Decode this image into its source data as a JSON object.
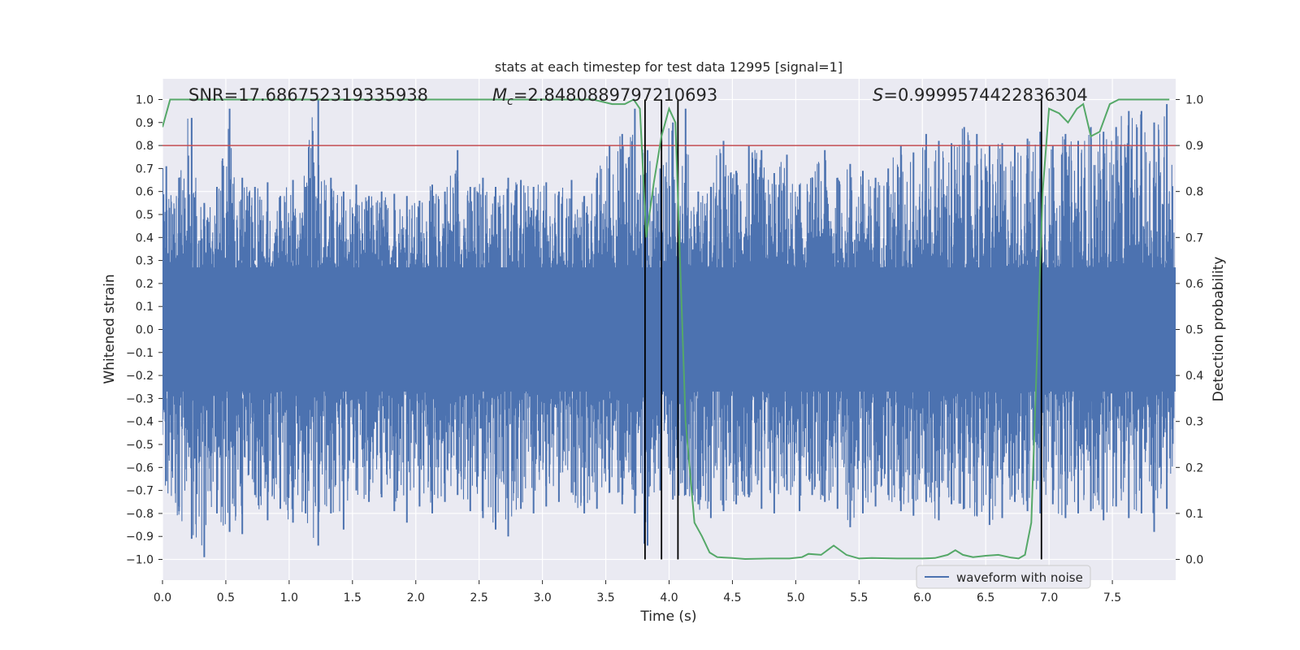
{
  "chart_data": {
    "type": "line",
    "title": "stats at each timestep for test data 12995 [signal=1]",
    "xlabel": "Time (s)",
    "ylabel": "Whitened strain",
    "y2label": "Detection probability",
    "xlim": [
      0.0,
      8.0
    ],
    "ylim": [
      -1.09,
      1.09
    ],
    "y2lim": [
      -0.045,
      1.045
    ],
    "xticks": [
      "0.0",
      "0.5",
      "1.0",
      "1.5",
      "2.0",
      "2.5",
      "3.0",
      "3.5",
      "4.0",
      "4.5",
      "5.0",
      "5.5",
      "6.0",
      "6.5",
      "7.0",
      "7.5"
    ],
    "yticks": [
      "1.0",
      "0.9",
      "0.8",
      "0.7",
      "0.6",
      "0.5",
      "0.4",
      "0.3",
      "0.2",
      "0.1",
      "0.0",
      "−0.1",
      "−0.2",
      "−0.3",
      "−0.4",
      "−0.5",
      "−0.6",
      "−0.7",
      "−0.8",
      "−0.9",
      "−1.0"
    ],
    "y2ticks": [
      "1.0",
      "0.9",
      "0.8",
      "0.7",
      "0.6",
      "0.5",
      "0.4",
      "0.3",
      "0.2",
      "0.1",
      "0.0"
    ],
    "threshold": 0.8,
    "annotations": {
      "snr": "SNR=17.686752319335938",
      "mc_symbol": "M",
      "mc_sub": "c",
      "mc_value": "=2.8480889797210693",
      "s_symbol": "S",
      "s_value": "=0.9999574422836304"
    },
    "vlines": [
      3.81,
      3.94,
      4.07,
      6.94
    ],
    "legend": {
      "label": "waveform with noise",
      "position": "lower-right"
    },
    "series": [
      {
        "name": "waveform with noise",
        "color": "#4c72b0",
        "envelope": {
          "x": [
            0.0,
            0.1,
            0.2,
            0.3,
            0.4,
            0.5,
            0.6,
            0.7,
            0.8,
            0.9,
            1.0,
            1.1,
            1.2,
            1.3,
            1.4,
            1.5,
            1.6,
            1.7,
            1.8,
            1.9,
            2.0,
            2.1,
            2.2,
            2.3,
            2.4,
            2.5,
            2.6,
            2.7,
            2.8,
            2.9,
            3.0,
            3.1,
            3.2,
            3.3,
            3.4,
            3.5,
            3.6,
            3.7,
            3.8,
            3.9,
            4.0,
            4.1,
            4.2,
            4.3,
            4.4,
            4.5,
            4.6,
            4.7,
            4.8,
            4.9,
            5.0,
            5.1,
            5.2,
            5.3,
            5.4,
            5.5,
            5.6,
            5.7,
            5.8,
            5.9,
            6.0,
            6.1,
            6.2,
            6.3,
            6.4,
            6.5,
            6.6,
            6.7,
            6.8,
            6.9,
            7.0,
            7.1,
            7.2,
            7.3,
            7.4,
            7.5,
            7.6,
            7.7,
            7.8,
            7.9,
            8.0
          ],
          "upper": [
            0.71,
            0.66,
            0.92,
            0.55,
            0.62,
            0.96,
            0.66,
            0.62,
            0.64,
            0.58,
            0.65,
            0.62,
            1.0,
            0.66,
            0.6,
            0.63,
            0.58,
            0.6,
            0.59,
            0.58,
            0.56,
            0.63,
            0.6,
            0.78,
            0.62,
            0.66,
            0.62,
            0.66,
            0.65,
            0.62,
            0.64,
            0.6,
            0.65,
            0.58,
            0.66,
            0.8,
            0.85,
            0.96,
            0.78,
            0.7,
            0.9,
            0.96,
            0.6,
            0.62,
            0.82,
            0.69,
            0.8,
            0.78,
            0.68,
            0.76,
            0.63,
            0.66,
            0.78,
            0.66,
            0.72,
            0.69,
            0.66,
            0.7,
            0.8,
            0.77,
            0.85,
            0.82,
            0.81,
            0.88,
            0.85,
            0.8,
            0.81,
            0.8,
            0.83,
            0.86,
            0.8,
            0.85,
            0.82,
            0.88,
            0.86,
            0.88,
            0.95,
            0.95,
            0.9,
            0.98,
            0.86
          ],
          "lower": [
            -0.66,
            -0.79,
            -0.91,
            -0.99,
            -0.8,
            -0.88,
            -0.89,
            -0.72,
            -0.83,
            -0.78,
            -0.84,
            -0.8,
            -0.94,
            -0.8,
            -0.87,
            -0.7,
            -0.75,
            -0.73,
            -0.79,
            -0.84,
            -0.77,
            -0.8,
            -0.75,
            -0.72,
            -0.79,
            -0.82,
            -0.87,
            -0.9,
            -0.78,
            -0.8,
            -0.77,
            -0.75,
            -0.71,
            -0.8,
            -0.78,
            -0.71,
            -0.76,
            -0.8,
            -0.94,
            -0.7,
            -0.74,
            -0.72,
            -0.76,
            -0.82,
            -0.79,
            -0.76,
            -0.73,
            -0.78,
            -0.8,
            -0.7,
            -0.79,
            -0.72,
            -0.75,
            -0.78,
            -0.86,
            -0.8,
            -0.77,
            -0.72,
            -0.79,
            -0.81,
            -0.75,
            -0.83,
            -0.76,
            -0.78,
            -0.81,
            -0.85,
            -0.82,
            -0.75,
            -0.79,
            -0.8,
            -0.76,
            -0.82,
            -0.8,
            -0.79,
            -0.83,
            -0.77,
            -0.82,
            -0.8,
            -0.88,
            -0.78,
            -0.62
          ]
        }
      },
      {
        "name": "detection probability",
        "color": "#55a868",
        "axis": "right",
        "x": [
          0.0,
          0.06,
          0.1,
          0.5,
          1.0,
          1.5,
          2.0,
          2.5,
          3.0,
          3.4,
          3.55,
          3.65,
          3.72,
          3.77,
          3.82,
          3.88,
          3.94,
          4.0,
          4.05,
          4.08,
          4.13,
          4.2,
          4.26,
          4.32,
          4.38,
          4.5,
          4.6,
          4.8,
          4.95,
          5.05,
          5.1,
          5.2,
          5.3,
          5.4,
          5.5,
          5.6,
          5.8,
          6.0,
          6.1,
          6.2,
          6.26,
          6.32,
          6.4,
          6.5,
          6.6,
          6.7,
          6.76,
          6.81,
          6.86,
          6.9,
          6.95,
          7.0,
          7.08,
          7.15,
          7.22,
          7.27,
          7.33,
          7.4,
          7.48,
          7.55,
          7.7,
          7.8,
          7.9,
          7.95
        ],
        "y": [
          0.94,
          1.0,
          1.0,
          1.0,
          1.0,
          1.0,
          1.0,
          1.0,
          1.0,
          1.0,
          0.99,
          0.99,
          1.0,
          0.98,
          0.7,
          0.82,
          0.92,
          0.98,
          0.95,
          0.7,
          0.3,
          0.08,
          0.05,
          0.015,
          0.005,
          0.003,
          0.001,
          0.002,
          0.002,
          0.005,
          0.012,
          0.01,
          0.03,
          0.01,
          0.002,
          0.003,
          0.002,
          0.002,
          0.003,
          0.01,
          0.02,
          0.01,
          0.005,
          0.008,
          0.01,
          0.004,
          0.002,
          0.01,
          0.08,
          0.4,
          0.8,
          0.98,
          0.97,
          0.95,
          0.98,
          0.99,
          0.92,
          0.93,
          0.99,
          1.0,
          1.0,
          1.0,
          1.0,
          1.0
        ]
      }
    ]
  }
}
